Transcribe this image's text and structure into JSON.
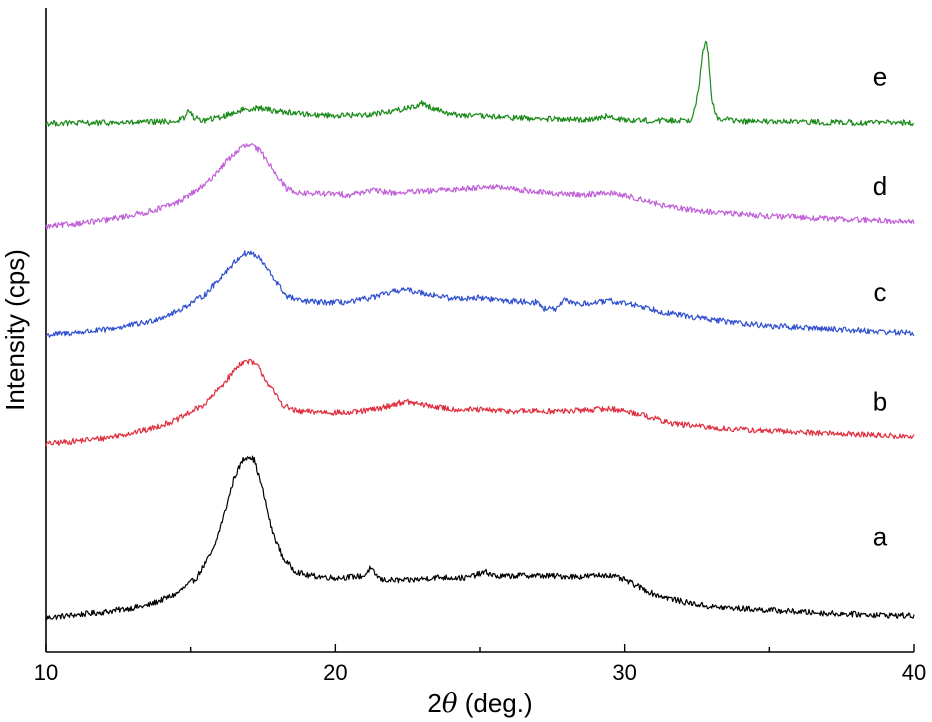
{
  "chart_data": {
    "type": "line",
    "xlabel_prefix": "2",
    "xlabel_symbol": "θ",
    "xlabel_suffix": " (deg.)",
    "ylabel": "Intensity (cps)",
    "xlim": [
      10,
      40
    ],
    "ylim": [
      0,
      100
    ],
    "xticks": [
      10,
      20,
      30,
      40
    ],
    "tick_labels": [
      "10",
      "20",
      "30",
      "40"
    ],
    "grid": false,
    "series": [
      {
        "label": "a",
        "color": "#000000",
        "label_y": 16.5,
        "points": [
          [
            10,
            5.3
          ],
          [
            12,
            6.2
          ],
          [
            13.5,
            7.2
          ],
          [
            14.5,
            9.0
          ],
          [
            15.2,
            11.5
          ],
          [
            15.8,
            16.0
          ],
          [
            16.2,
            22.0
          ],
          [
            16.5,
            27.0
          ],
          [
            16.8,
            29.8
          ],
          [
            17.0,
            30.5
          ],
          [
            17.2,
            29.8
          ],
          [
            17.5,
            25.0
          ],
          [
            17.8,
            19.0
          ],
          [
            18.2,
            14.5
          ],
          [
            18.6,
            12.6
          ],
          [
            19,
            11.9
          ],
          [
            20,
            11.5
          ],
          [
            21,
            11.8
          ],
          [
            21.2,
            13.0
          ],
          [
            21.35,
            12.2
          ],
          [
            21.6,
            11.2
          ],
          [
            22.5,
            11.1
          ],
          [
            23.5,
            11.6
          ],
          [
            24.5,
            11.5
          ],
          [
            25.2,
            12.4
          ],
          [
            25.6,
            11.7
          ],
          [
            26.5,
            11.9
          ],
          [
            27.5,
            11.8
          ],
          [
            28.5,
            11.7
          ],
          [
            29.4,
            12.0
          ],
          [
            30,
            11.2
          ],
          [
            31,
            9.0
          ],
          [
            32,
            7.8
          ],
          [
            33,
            7.0
          ],
          [
            35,
            6.5
          ],
          [
            37,
            6.0
          ],
          [
            40,
            5.6
          ]
        ]
      },
      {
        "label": "b",
        "color": "#e03040",
        "label_y": 37.5,
        "points": [
          [
            10,
            32.3
          ],
          [
            12,
            33.2
          ],
          [
            13.5,
            34.5
          ],
          [
            14.5,
            36.0
          ],
          [
            15.5,
            38.5
          ],
          [
            16.2,
            42.0
          ],
          [
            16.7,
            44.8
          ],
          [
            17.0,
            45.2
          ],
          [
            17.3,
            44.5
          ],
          [
            17.7,
            41.5
          ],
          [
            18.2,
            38.3
          ],
          [
            18.7,
            37.3
          ],
          [
            19.5,
            37.3
          ],
          [
            20.5,
            37.1
          ],
          [
            21.5,
            37.8
          ],
          [
            22.4,
            38.9
          ],
          [
            23,
            38.4
          ],
          [
            24,
            37.7
          ],
          [
            25,
            37.6
          ],
          [
            26,
            37.4
          ],
          [
            27,
            37.4
          ],
          [
            28,
            37.4
          ],
          [
            29.5,
            37.8
          ],
          [
            30.5,
            37.0
          ],
          [
            31.5,
            35.6
          ],
          [
            33,
            34.8
          ],
          [
            35,
            34.3
          ],
          [
            37,
            34.0
          ],
          [
            40,
            33.4
          ]
        ]
      },
      {
        "label": "c",
        "color": "#3050d0",
        "label_y": 54.5,
        "points": [
          [
            10,
            49.2
          ],
          [
            12,
            50.0
          ],
          [
            13.5,
            51.2
          ],
          [
            14.5,
            52.8
          ],
          [
            15.5,
            55.5
          ],
          [
            16.3,
            59.5
          ],
          [
            16.8,
            61.8
          ],
          [
            17.1,
            62.0
          ],
          [
            17.4,
            61.0
          ],
          [
            17.8,
            58.5
          ],
          [
            18.3,
            55.3
          ],
          [
            18.8,
            54.5
          ],
          [
            19.5,
            54.3
          ],
          [
            20.5,
            54.3
          ],
          [
            21.5,
            55.3
          ],
          [
            22.3,
            56.3
          ],
          [
            23,
            55.8
          ],
          [
            24,
            54.9
          ],
          [
            25,
            55.0
          ],
          [
            26,
            54.5
          ],
          [
            27,
            54.3
          ],
          [
            27.2,
            53.3
          ],
          [
            27.7,
            53.3
          ],
          [
            27.9,
            54.6
          ],
          [
            28.5,
            54.0
          ],
          [
            29.5,
            54.5
          ],
          [
            30.5,
            53.8
          ],
          [
            31.5,
            52.6
          ],
          [
            33,
            51.6
          ],
          [
            35,
            50.6
          ],
          [
            37,
            50.2
          ],
          [
            40,
            49.5
          ]
        ]
      },
      {
        "label": "d",
        "color": "#c060d8",
        "label_y": 71.0,
        "points": [
          [
            10,
            66.0
          ],
          [
            12,
            67.0
          ],
          [
            13.5,
            68.3
          ],
          [
            14.5,
            69.7
          ],
          [
            15.5,
            72.5
          ],
          [
            16.3,
            76.5
          ],
          [
            16.8,
            78.5
          ],
          [
            17.1,
            78.7
          ],
          [
            17.4,
            77.8
          ],
          [
            17.8,
            75.3
          ],
          [
            18.3,
            72.0
          ],
          [
            18.8,
            71.2
          ],
          [
            19.5,
            71.2
          ],
          [
            20.5,
            71.0
          ],
          [
            21.2,
            71.7
          ],
          [
            22,
            71.3
          ],
          [
            23,
            71.5
          ],
          [
            24,
            71.8
          ],
          [
            25.3,
            72.3
          ],
          [
            26.5,
            71.7
          ],
          [
            27.5,
            71.2
          ],
          [
            28.5,
            71.0
          ],
          [
            29.5,
            71.3
          ],
          [
            30.5,
            70.4
          ],
          [
            31.5,
            69.1
          ],
          [
            33,
            68.3
          ],
          [
            35,
            67.7
          ],
          [
            37,
            67.3
          ],
          [
            40,
            66.8
          ]
        ]
      },
      {
        "label": "e",
        "color": "#1a8a1a",
        "label_y": 88.0,
        "points": [
          [
            10,
            82.1
          ],
          [
            13,
            82.2
          ],
          [
            14.5,
            82.4
          ],
          [
            14.8,
            83.0
          ],
          [
            14.95,
            84.2
          ],
          [
            15.1,
            83.0
          ],
          [
            15.4,
            82.5
          ],
          [
            16,
            83.0
          ],
          [
            16.8,
            84.2
          ],
          [
            17.3,
            84.5
          ],
          [
            18,
            84.0
          ],
          [
            19,
            83.5
          ],
          [
            20,
            83.3
          ],
          [
            21,
            83.4
          ],
          [
            22,
            84.0
          ],
          [
            22.8,
            84.8
          ],
          [
            23.0,
            85.2
          ],
          [
            23.3,
            84.6
          ],
          [
            24,
            83.5
          ],
          [
            25,
            83.2
          ],
          [
            26,
            83.0
          ],
          [
            27,
            82.8
          ],
          [
            28.5,
            82.6
          ],
          [
            29.4,
            83.2
          ],
          [
            29.7,
            82.7
          ],
          [
            31,
            82.5
          ],
          [
            32.3,
            82.6
          ],
          [
            32.55,
            87.0
          ],
          [
            32.7,
            93.0
          ],
          [
            32.8,
            95.0
          ],
          [
            32.9,
            92.5
          ],
          [
            33.0,
            86.0
          ],
          [
            33.2,
            82.9
          ],
          [
            34,
            82.4
          ],
          [
            36,
            82.3
          ],
          [
            38,
            82.2
          ],
          [
            40,
            82.2
          ]
        ]
      }
    ]
  }
}
